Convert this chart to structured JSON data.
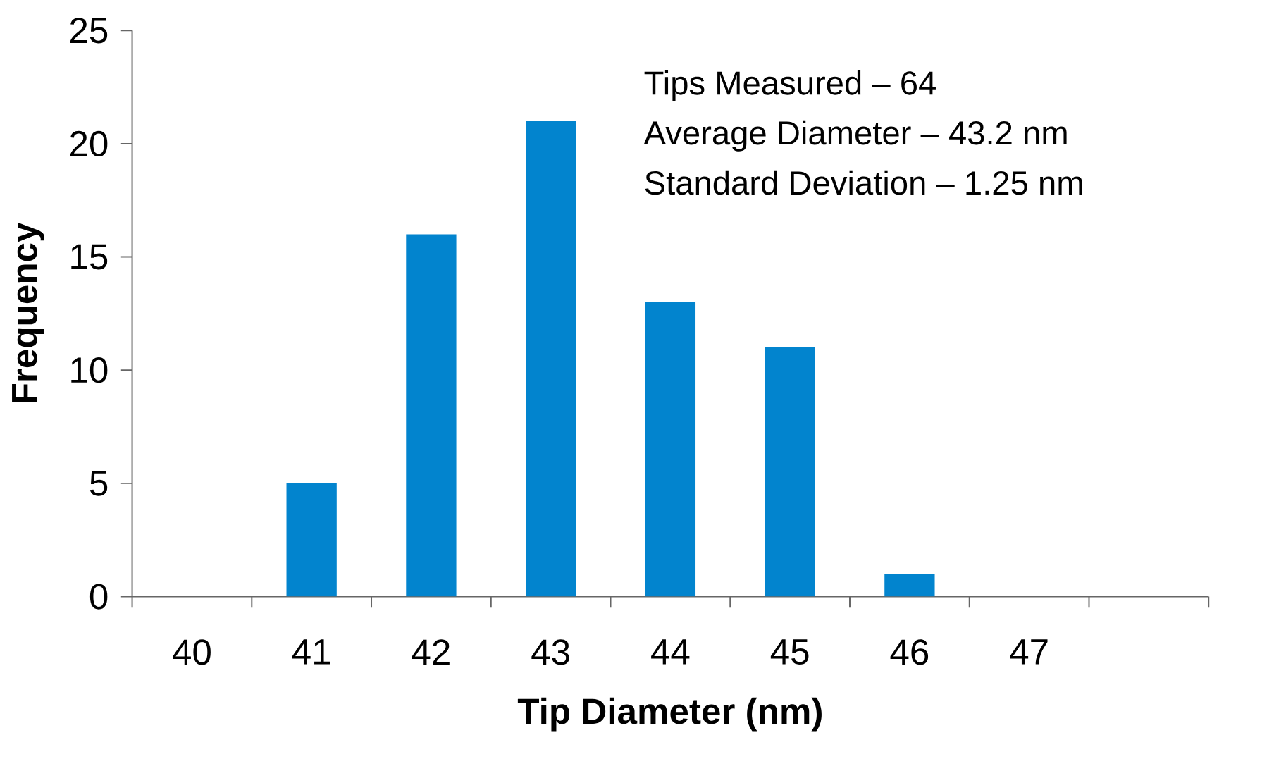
{
  "chart_data": {
    "type": "bar",
    "xlabel": "Tip Diameter (nm)",
    "ylabel": "Frequency",
    "categories": [
      "40",
      "41",
      "42",
      "43",
      "44",
      "45",
      "46",
      "47",
      null
    ],
    "values": [
      0,
      5,
      16,
      21,
      13,
      11,
      1,
      0,
      0
    ],
    "color": "#0284ce",
    "ylim": [
      0,
      25
    ],
    "yticks": [
      0,
      5,
      10,
      15,
      20,
      25
    ],
    "annotations": [
      "Tips Measured – 64",
      "Average Diameter – 43.2 nm",
      "Standard Deviation – 1.25 nm"
    ]
  }
}
